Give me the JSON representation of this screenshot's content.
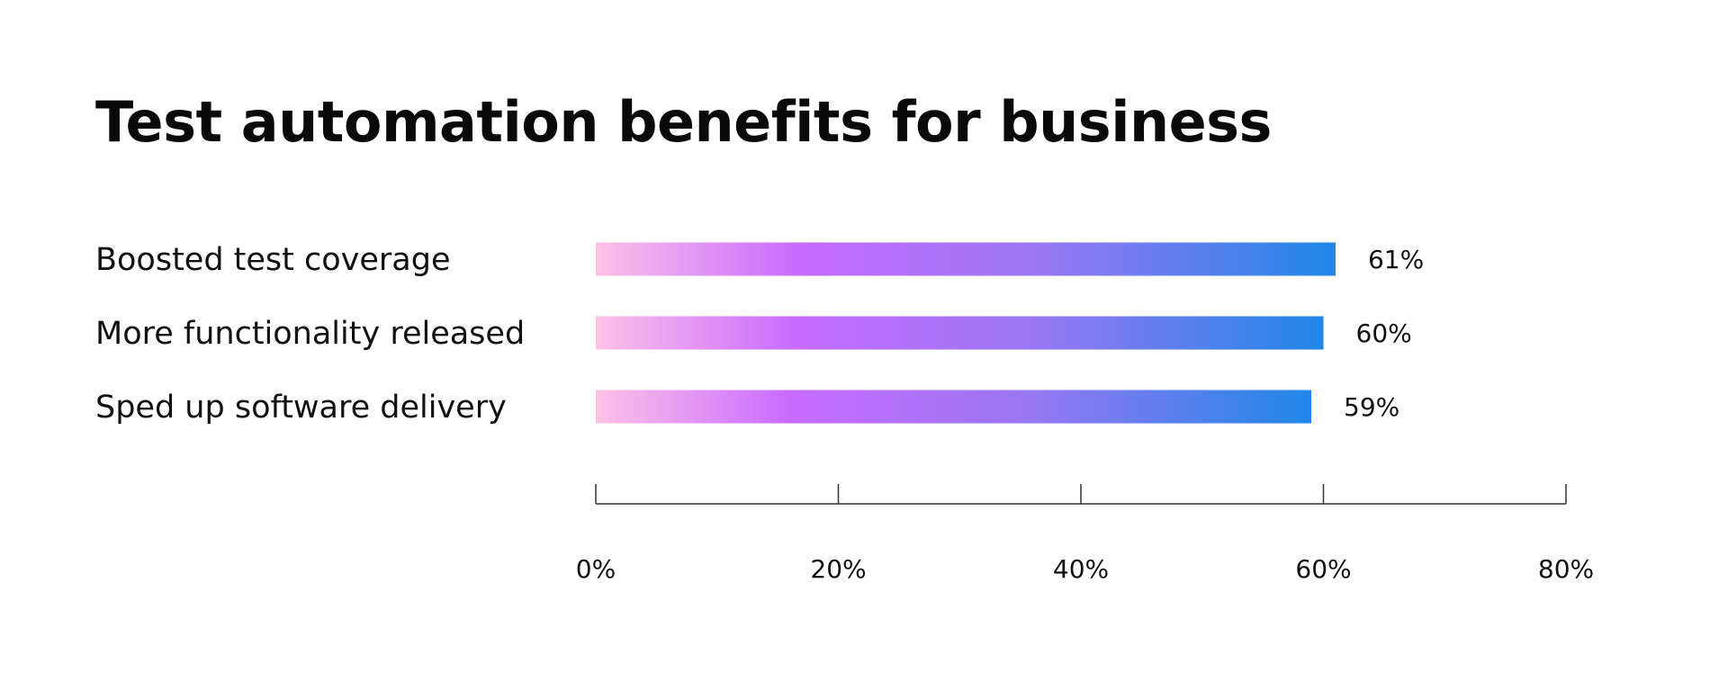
{
  "chart_data": {
    "type": "bar",
    "orientation": "horizontal",
    "title": "Test automation benefits for business",
    "xlabel": "",
    "ylabel": "",
    "categories": [
      "Boosted test coverage",
      "More functionality released",
      "Sped up software delivery"
    ],
    "values": [
      61,
      60,
      59
    ],
    "value_labels": [
      "61%",
      "60%",
      "59%"
    ],
    "xlim": [
      0,
      80
    ],
    "x_ticks": [
      0,
      20,
      40,
      60,
      80
    ],
    "x_tick_labels": [
      "0%",
      "20%",
      "40%",
      "60%",
      "80%"
    ],
    "grid": false,
    "legend": "none",
    "bar_gradient": [
      "#fdc2e6",
      "#c86cff",
      "#9a77f2",
      "#1f87e8"
    ]
  }
}
